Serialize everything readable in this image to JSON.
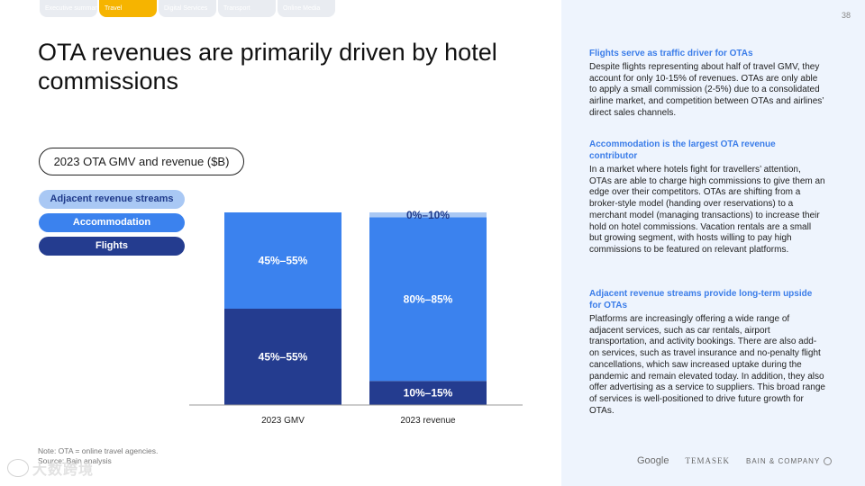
{
  "nav_tabs": [
    {
      "label": "Executive summary",
      "active": false
    },
    {
      "label": "Travel",
      "active": true
    },
    {
      "label": "Digital Services",
      "active": false
    },
    {
      "label": "Transport",
      "active": false
    },
    {
      "label": "Online Media",
      "active": false
    }
  ],
  "headline": "OTA revenues are primarily driven by hotel commissions",
  "chart_title": "2023 OTA GMV and revenue ($B)",
  "legend": [
    {
      "label": "Adjacent revenue streams",
      "color": "#a9c8f4"
    },
    {
      "label": "Accommodation",
      "color": "#3b82ee"
    },
    {
      "label": "Flights",
      "color": "#243c8f"
    }
  ],
  "chart_data": {
    "type": "bar",
    "stacked": true,
    "normalized": true,
    "categories": [
      "2023 GMV",
      "2023 revenue"
    ],
    "series": [
      {
        "name": "Flights",
        "color": "#243c8f",
        "values": [
          50,
          12.5
        ],
        "labels": [
          "45%–55%",
          "10%–15%"
        ]
      },
      {
        "name": "Accommodation",
        "color": "#3b82ee",
        "values": [
          50,
          85
        ],
        "labels": [
          "45%–55%",
          "80%–85%"
        ]
      },
      {
        "name": "Adjacent revenue streams",
        "color": "#a9c8f4",
        "values": [
          0,
          2.5
        ],
        "labels": [
          "",
          "0%–10%"
        ]
      }
    ],
    "ylim": [
      0,
      100
    ],
    "grid": false,
    "legend_position": "left"
  },
  "footnote": {
    "note": "Note: OTA = online travel agencies.",
    "source": "Source: Bain analysis"
  },
  "watermark": "大数跨境",
  "sidebar": {
    "page_number": "38",
    "sections": [
      {
        "heading": "Flights serve as traffic driver for OTAs",
        "body": "Despite flights representing about half of travel GMV, they account for only 10-15% of revenues. OTAs are only able to apply a small commission (2-5%) due to a consolidated airline market, and competition between OTAs and airlines’ direct sales channels."
      },
      {
        "heading": "Accommodation is the largest OTA revenue contributor",
        "body": "In a market where hotels fight for travellers’ attention, OTAs are able to charge high commissions to give them an edge over their competitors. OTAs are shifting from a broker-style model (handing over reservations) to a merchant model (managing transactions) to increase their hold on hotel commissions. Vacation rentals are a small but growing segment, with hosts willing to pay high commissions to be featured on relevant platforms."
      },
      {
        "heading": "Adjacent revenue streams provide long-term upside for OTAs",
        "body": "Platforms are increasingly offering a wide range of adjacent services, such as car rentals, airport transportation, and activity bookings. There are also add-on services, such as travel insurance and no-penalty flight cancellations, which saw increased uptake during the pandemic and remain elevated today. In addition, they also offer advertising as a service to suppliers. This broad range of services is well-positioned to drive future growth for OTAs."
      }
    ],
    "logos": [
      "Google",
      "TEMASEK",
      "BAIN & COMPANY"
    ]
  }
}
